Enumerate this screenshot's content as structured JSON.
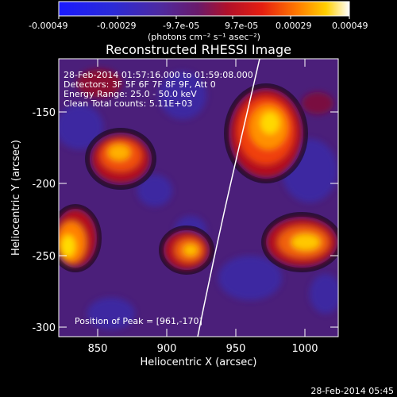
{
  "colorbar": {
    "tick_labels": [
      "-0.00049",
      "-0.00029",
      "-9.7e-05",
      "9.7e-05",
      "0.00029",
      "0.00049"
    ],
    "units_label": "(photons cm⁻² s⁻¹ asec⁻²)"
  },
  "image": {
    "title": "Reconstructed RHESSI Image",
    "annotations": {
      "time_range": "28-Feb-2014 01:57:16.000 to 01:59:08.000",
      "detectors": "Detectors: 3F 5F 6F 7F 8F 9F, Att 0",
      "energy_range": "Energy Range: 25.0 - 50.0 keV",
      "clean_counts": "Clean    Total counts: 5.11E+03",
      "peak_position": "Position of Peak = [961,-170]"
    },
    "x_axis": {
      "label": "Heliocentric X (arcsec)",
      "ticks": [
        "850",
        "900",
        "950",
        "1000"
      ]
    },
    "y_axis": {
      "label": "Heliocentric Y (arcsec)",
      "ticks": [
        "-150",
        "-200",
        "-250",
        "-300"
      ]
    },
    "footer_timestamp": "28-Feb-2014 05:45",
    "colors": {
      "map_background": "#4b1f7a",
      "limb_line": "#ffffff"
    }
  }
}
